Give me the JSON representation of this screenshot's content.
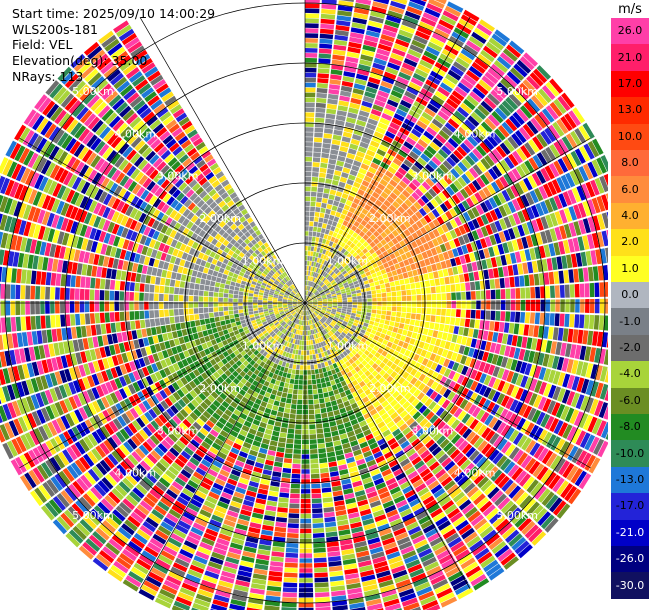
{
  "header": {
    "start_time": "Start time: 2025/09/10 14:00:29",
    "instrument": "WLS200s-181",
    "field": "Field: VEL",
    "elevation": "Elevation(deg): 35.00",
    "nrays": "NRays: 113"
  },
  "colorbar": {
    "unit": "m/s",
    "labels": [
      "26.0",
      "21.0",
      "17.0",
      "13.0",
      "10.0",
      "8.0",
      "6.0",
      "4.0",
      "2.0",
      "1.0",
      "0.0",
      "-1.0",
      "-2.0",
      "-4.0",
      "-6.0",
      "-8.0",
      "-10.0",
      "-13.0",
      "-17.0",
      "-21.0",
      "-26.0",
      "-30.0"
    ],
    "colors": [
      "#ff3fa8",
      "#ff1f6a",
      "#ff0000",
      "#ff2a00",
      "#ff4a12",
      "#ff6a3a",
      "#ff8c3c",
      "#ffb030",
      "#ffe01a",
      "#ffff22",
      "#b0b6c0",
      "#7a8088",
      "#6d6d6d",
      "#a8d43a",
      "#6b8e23",
      "#228b22",
      "#2e8b57",
      "#1e78d8",
      "#2323d8",
      "#0000c8",
      "#000080",
      "#101060"
    ]
  },
  "chart_data": {
    "type": "heatmap",
    "projection": "polar-ppi",
    "range_km_max": 5.5,
    "range_rings_km": [
      1,
      2,
      3,
      4,
      5
    ],
    "range_ring_labels": [
      "1.00km",
      "2.00km",
      "3.00km",
      "4.00km",
      "5.00km"
    ],
    "spoke_azimuths_deg": [
      0,
      30,
      60,
      90,
      120,
      150,
      180,
      210,
      240,
      270,
      300,
      330
    ],
    "missing_sector_deg": [
      325,
      360
    ],
    "nrays": 113,
    "field": "VEL",
    "units": "m/s",
    "color_levels": [
      -30,
      -26,
      -21,
      -17,
      -13,
      -10,
      -8,
      -6,
      -4,
      -2,
      -1,
      0,
      1,
      2,
      4,
      6,
      8,
      10,
      13,
      17,
      21,
      26
    ]
  }
}
